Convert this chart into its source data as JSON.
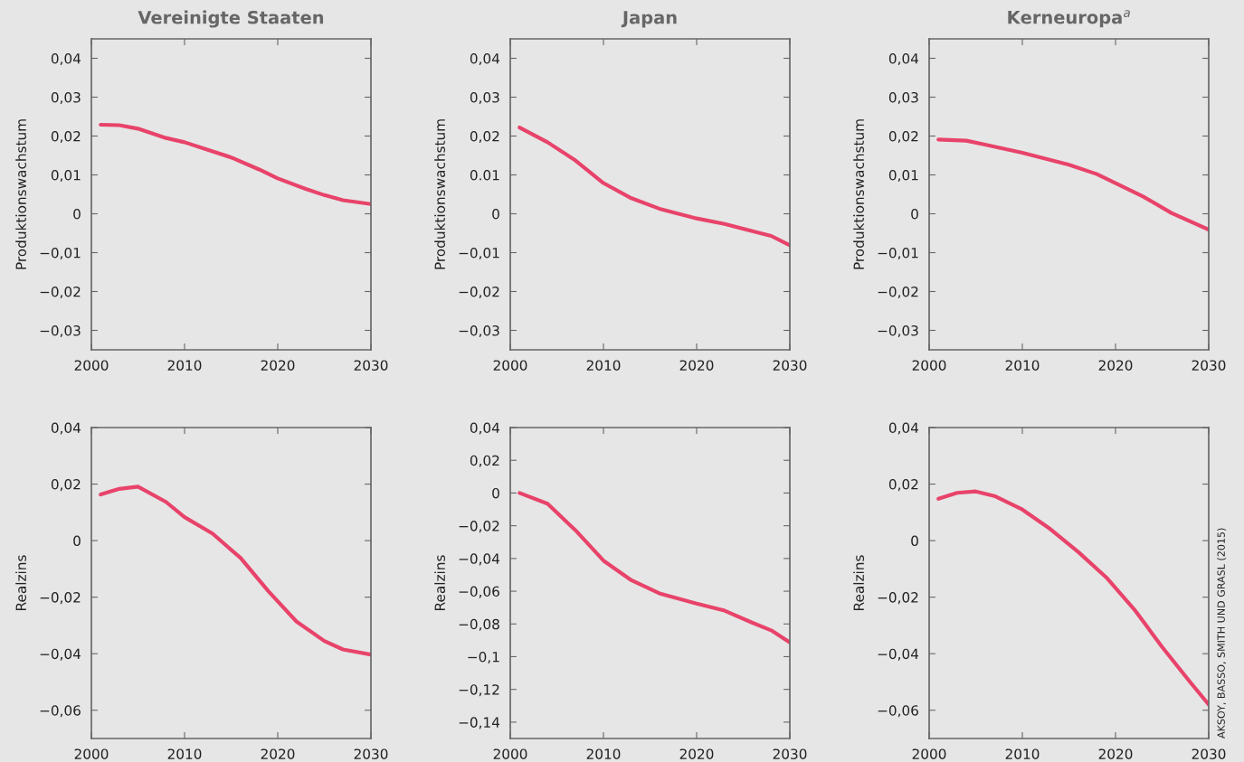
{
  "chart_data": [
    {
      "type": "line",
      "title": "Vereinigte Staaten",
      "ylabel": "Produktionswachstum",
      "xlim": [
        2000,
        2030
      ],
      "xticks": [
        2000,
        2010,
        2020,
        2030
      ],
      "ylim": [
        -0.035,
        0.045
      ],
      "yticks": [
        {
          "value": 0.04,
          "label": "0,04"
        },
        {
          "value": 0.03,
          "label": "0,03"
        },
        {
          "value": 0.02,
          "label": "0,02"
        },
        {
          "value": 0.01,
          "label": "0,01"
        },
        {
          "value": 0,
          "label": "0"
        },
        {
          "value": -0.01,
          "label": "−0,01"
        },
        {
          "value": -0.02,
          "label": "−0,02"
        },
        {
          "value": -0.03,
          "label": "−0,03"
        }
      ],
      "series": [
        {
          "color": "#e8436a",
          "x": [
            2001,
            2003,
            2005,
            2008,
            2010,
            2015,
            2018,
            2020,
            2023,
            2025,
            2027,
            2030
          ],
          "values": [
            0.0229,
            0.0228,
            0.0219,
            0.0195,
            0.0184,
            0.0145,
            0.0114,
            0.0091,
            0.0064,
            0.0048,
            0.0035,
            0.0025
          ]
        }
      ]
    },
    {
      "type": "line",
      "title": "Japan",
      "ylabel": "Produktionswachstum",
      "xlim": [
        2000,
        2030
      ],
      "xticks": [
        2000,
        2010,
        2020,
        2030
      ],
      "ylim": [
        -0.035,
        0.045
      ],
      "yticks": [
        {
          "value": 0.04,
          "label": "0,04"
        },
        {
          "value": 0.03,
          "label": "0,03"
        },
        {
          "value": 0.02,
          "label": "0,02"
        },
        {
          "value": 0.01,
          "label": "0.01"
        },
        {
          "value": 0,
          "label": "0"
        },
        {
          "value": -0.01,
          "label": "−0,01"
        },
        {
          "value": -0.02,
          "label": "−0,02"
        },
        {
          "value": -0.03,
          "label": "−0,03"
        }
      ],
      "series": [
        {
          "color": "#e8436a",
          "x": [
            2001,
            2004,
            2007,
            2010,
            2013,
            2016,
            2020,
            2023,
            2026,
            2028,
            2030
          ],
          "values": [
            0.0222,
            0.0184,
            0.0137,
            0.0079,
            0.004,
            0.0013,
            -0.0012,
            -0.0026,
            -0.0045,
            -0.0057,
            -0.0081
          ]
        }
      ]
    },
    {
      "type": "line",
      "title": "Kerneuropa$^{a}$",
      "ylabel": "Produktionswachstum",
      "xlim": [
        2000,
        2030
      ],
      "xticks": [
        2000,
        2010,
        2020,
        2030
      ],
      "ylim": [
        -0.035,
        0.045
      ],
      "yticks": [
        {
          "value": 0.04,
          "label": "0,04"
        },
        {
          "value": 0.03,
          "label": "0,03"
        },
        {
          "value": 0.02,
          "label": "0,02"
        },
        {
          "value": 0.01,
          "label": "0,01"
        },
        {
          "value": 0,
          "label": "0"
        },
        {
          "value": -0.01,
          "label": "−0,01"
        },
        {
          "value": -0.02,
          "label": "−0,02"
        },
        {
          "value": -0.03,
          "label": "−0,03"
        }
      ],
      "series": [
        {
          "color": "#e8436a",
          "x": [
            2001,
            2004,
            2006,
            2010,
            2015,
            2018,
            2020,
            2023,
            2026,
            2030
          ],
          "values": [
            0.0191,
            0.0188,
            0.0178,
            0.0157,
            0.0126,
            0.0102,
            0.0079,
            0.0044,
            0.0002,
            -0.0041
          ]
        }
      ]
    },
    {
      "type": "line",
      "ylabel": "Realzins",
      "xlim": [
        2000,
        2030
      ],
      "xticks": [
        2000,
        2010,
        2020,
        2030
      ],
      "ylim": [
        -0.07,
        0.04
      ],
      "yticks": [
        {
          "value": 0.04,
          "label": "0,04"
        },
        {
          "value": 0.02,
          "label": "0,02"
        },
        {
          "value": 0,
          "label": "0"
        },
        {
          "value": -0.02,
          "label": "−0,02"
        },
        {
          "value": -0.04,
          "label": "−0,04"
        },
        {
          "value": -0.06,
          "label": "−0,06"
        }
      ],
      "series": [
        {
          "color": "#e8436a",
          "x": [
            2001,
            2003,
            2005,
            2008,
            2010,
            2013,
            2016,
            2019,
            2022,
            2025,
            2027,
            2030
          ],
          "values": [
            0.0163,
            0.0183,
            0.0191,
            0.0137,
            0.0083,
            0.0025,
            -0.0061,
            -0.0179,
            -0.0286,
            -0.0355,
            -0.0385,
            -0.0403
          ]
        }
      ]
    },
    {
      "type": "line",
      "ylabel": "Realzins",
      "xlim": [
        2000,
        2030
      ],
      "xticks": [
        2000,
        2010,
        2020,
        2030
      ],
      "ylim": [
        -0.15,
        0.04
      ],
      "yticks": [
        {
          "value": 0.04,
          "label": "0,04"
        },
        {
          "value": 0.02,
          "label": "0,02"
        },
        {
          "value": 0,
          "label": "0"
        },
        {
          "value": -0.02,
          "label": "−0,02"
        },
        {
          "value": -0.04,
          "label": "−0,04"
        },
        {
          "value": -0.06,
          "label": "−0,06"
        },
        {
          "value": -0.08,
          "label": "−0,08"
        },
        {
          "value": -0.1,
          "label": "−0,1"
        },
        {
          "value": -0.12,
          "label": "−0,12"
        },
        {
          "value": -0.14,
          "label": "−0,14"
        }
      ],
      "series": [
        {
          "color": "#e8436a",
          "x": [
            2001,
            2004,
            2007,
            2010,
            2013,
            2016,
            2020,
            2023,
            2026,
            2028,
            2030
          ],
          "values": [
            0.0,
            -0.0065,
            -0.0228,
            -0.0413,
            -0.0533,
            -0.0613,
            -0.0676,
            -0.0719,
            -0.0793,
            -0.0839,
            -0.0913
          ]
        }
      ]
    },
    {
      "type": "line",
      "ylabel": "Realzins",
      "xlim": [
        2000,
        2030
      ],
      "xticks": [
        2000,
        2010,
        2020,
        2030
      ],
      "ylim": [
        -0.07,
        0.04
      ],
      "yticks": [
        {
          "value": 0.04,
          "label": "0,04"
        },
        {
          "value": 0.02,
          "label": "0,02"
        },
        {
          "value": 0,
          "label": "0"
        },
        {
          "value": -0.02,
          "label": "−0,02"
        },
        {
          "value": -0.04,
          "label": "−0,04"
        },
        {
          "value": -0.06,
          "label": "−0,06"
        }
      ],
      "annotations": [
        "AKSOY, BASSO, SMITH UND GRASL (2015)"
      ],
      "series": [
        {
          "color": "#e8436a",
          "x": [
            2001,
            2003,
            2005,
            2007,
            2010,
            2013,
            2016,
            2019,
            2022,
            2025,
            2028,
            2030
          ],
          "values": [
            0.0148,
            0.0169,
            0.0174,
            0.0158,
            0.011,
            0.0041,
            -0.004,
            -0.013,
            -0.0243,
            -0.0376,
            -0.05,
            -0.058
          ]
        }
      ]
    }
  ]
}
